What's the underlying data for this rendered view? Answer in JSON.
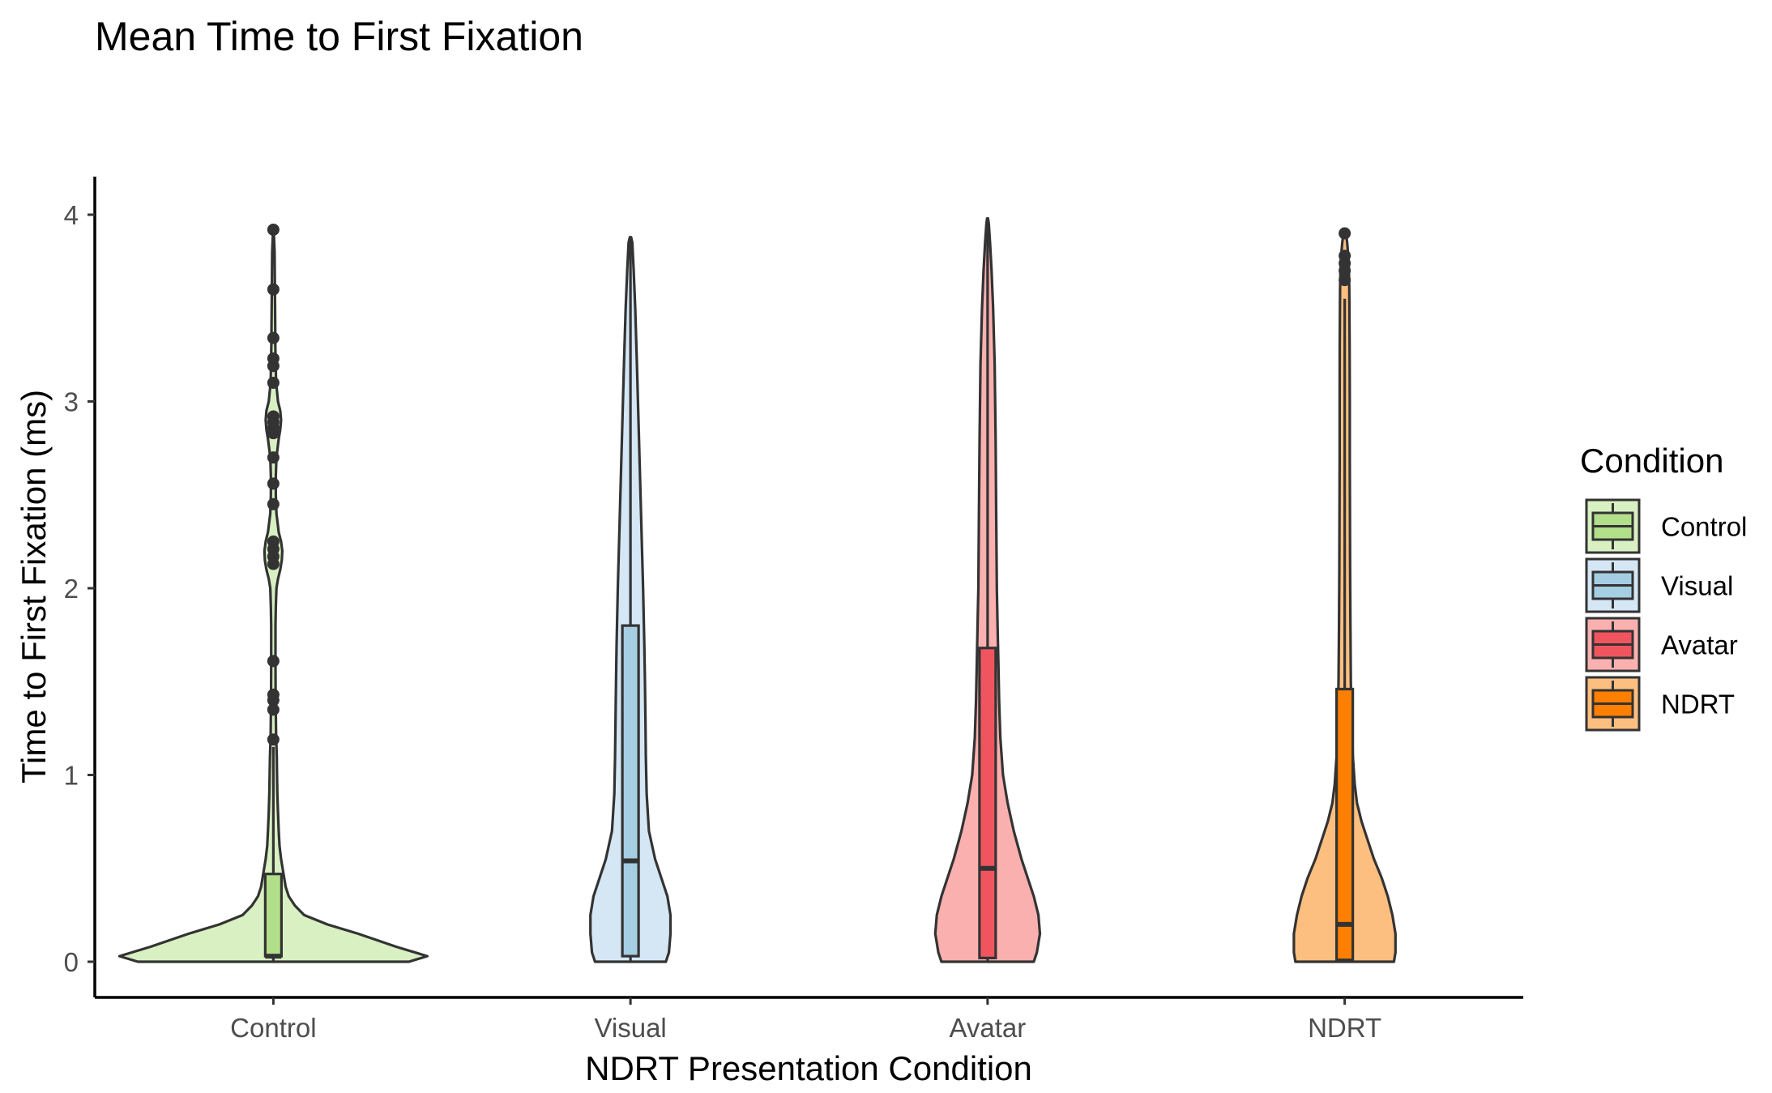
{
  "chart_data": {
    "type": "violin",
    "title": "Mean Time to First Fixation",
    "xlabel": "NDRT Presentation Condition",
    "ylabel": "Time to First Fixation (ms)",
    "ylim": [
      -0.2,
      4.2
    ],
    "yticks": [
      "0",
      "1",
      "2",
      "3",
      "4"
    ],
    "grid": false,
    "legend": {
      "title": "Condition",
      "position": "right",
      "entries": [
        "Control",
        "Visual",
        "Avatar",
        "NDRT"
      ]
    },
    "categories": [
      "Control",
      "Visual",
      "Avatar",
      "NDRT"
    ],
    "series": [
      {
        "name": "Control",
        "violin_color": "#d9f0c2",
        "box_color": "#b2df8a",
        "box": {
          "q1": 0.03,
          "median": 0.03,
          "q3": 0.47,
          "whisker_low": 0.0,
          "whisker_high": 1.15
        },
        "outliers": [
          1.19,
          1.35,
          1.4,
          1.43,
          1.61,
          2.13,
          2.17,
          2.21,
          2.25,
          2.45,
          2.56,
          2.7,
          2.83,
          2.86,
          2.89,
          2.92,
          3.1,
          3.19,
          3.23,
          3.34,
          3.6,
          3.92
        ],
        "density": {
          "y": [
            0,
            0.03,
            0.08,
            0.15,
            0.2,
            0.25,
            0.3,
            0.35,
            0.4,
            0.45,
            0.5,
            0.55,
            0.62,
            0.7,
            0.8,
            0.9,
            1.0,
            1.1,
            1.2,
            1.4,
            1.6,
            1.8,
            1.9,
            2.0,
            2.05,
            2.1,
            2.15,
            2.2,
            2.25,
            2.3,
            2.4,
            2.5,
            2.6,
            2.7,
            2.8,
            2.85,
            2.9,
            2.95,
            3.0,
            3.1,
            3.2,
            3.3,
            3.4,
            3.6,
            3.8,
            3.92
          ],
          "w": [
            0.88,
            1.0,
            0.8,
            0.55,
            0.35,
            0.2,
            0.14,
            0.1,
            0.08,
            0.07,
            0.06,
            0.05,
            0.04,
            0.035,
            0.03,
            0.026,
            0.024,
            0.022,
            0.018,
            0.015,
            0.014,
            0.014,
            0.016,
            0.02,
            0.03,
            0.045,
            0.055,
            0.058,
            0.05,
            0.035,
            0.02,
            0.016,
            0.016,
            0.02,
            0.035,
            0.045,
            0.05,
            0.045,
            0.03,
            0.018,
            0.015,
            0.013,
            0.012,
            0.01,
            0.008,
            0.002
          ]
        }
      },
      {
        "name": "Visual",
        "violin_color": "#d5e7f5",
        "box_color": "#a6cee3",
        "box": {
          "q1": 0.03,
          "median": 0.54,
          "q3": 1.8,
          "whisker_low": 0.0,
          "whisker_high": 3.88
        },
        "outliers": [],
        "density": {
          "y": [
            0,
            0.05,
            0.15,
            0.25,
            0.35,
            0.45,
            0.55,
            0.7,
            0.9,
            1.1,
            1.3,
            1.5,
            1.7,
            2.0,
            2.3,
            2.6,
            2.9,
            3.2,
            3.5,
            3.7,
            3.85,
            3.88
          ],
          "w": [
            0.23,
            0.25,
            0.26,
            0.26,
            0.24,
            0.2,
            0.16,
            0.12,
            0.105,
            0.1,
            0.097,
            0.094,
            0.09,
            0.082,
            0.072,
            0.062,
            0.052,
            0.042,
            0.031,
            0.021,
            0.012,
            0.004
          ]
        }
      },
      {
        "name": "Avatar",
        "violin_color": "#fbb0b0",
        "box_color": "#f0555f",
        "box": {
          "q1": 0.02,
          "median": 0.5,
          "q3": 1.68,
          "whisker_low": 0.0,
          "whisker_high": 3.98
        },
        "outliers": [],
        "density": {
          "y": [
            0,
            0.05,
            0.15,
            0.25,
            0.35,
            0.45,
            0.55,
            0.7,
            0.85,
            1.0,
            1.2,
            1.4,
            1.6,
            1.8,
            2.0,
            2.4,
            2.8,
            3.2,
            3.5,
            3.7,
            3.85,
            3.95,
            3.98
          ],
          "w": [
            0.3,
            0.32,
            0.34,
            0.33,
            0.3,
            0.26,
            0.22,
            0.17,
            0.13,
            0.1,
            0.083,
            0.075,
            0.07,
            0.065,
            0.06,
            0.056,
            0.052,
            0.046,
            0.036,
            0.026,
            0.016,
            0.008,
            0.003
          ]
        }
      },
      {
        "name": "NDRT",
        "violin_color": "#fdbf80",
        "box_color": "#ff7f00",
        "box": {
          "q1": 0.01,
          "median": 0.2,
          "q3": 1.46,
          "whisker_low": 0.0,
          "whisker_high": 3.55
        },
        "outliers": [
          3.65,
          3.7,
          3.74,
          3.78,
          3.9
        ],
        "density": {
          "y": [
            0,
            0.05,
            0.15,
            0.25,
            0.35,
            0.45,
            0.55,
            0.65,
            0.75,
            0.85,
            0.95,
            1.1,
            1.3,
            1.5,
            1.8,
            2.1,
            2.4,
            2.7,
            3.0,
            3.3,
            3.6,
            3.75,
            3.85,
            3.92
          ],
          "w": [
            0.32,
            0.33,
            0.33,
            0.31,
            0.28,
            0.24,
            0.19,
            0.15,
            0.11,
            0.08,
            0.065,
            0.053,
            0.045,
            0.04,
            0.037,
            0.035,
            0.034,
            0.033,
            0.033,
            0.032,
            0.03,
            0.026,
            0.016,
            0.005
          ]
        }
      }
    ]
  }
}
